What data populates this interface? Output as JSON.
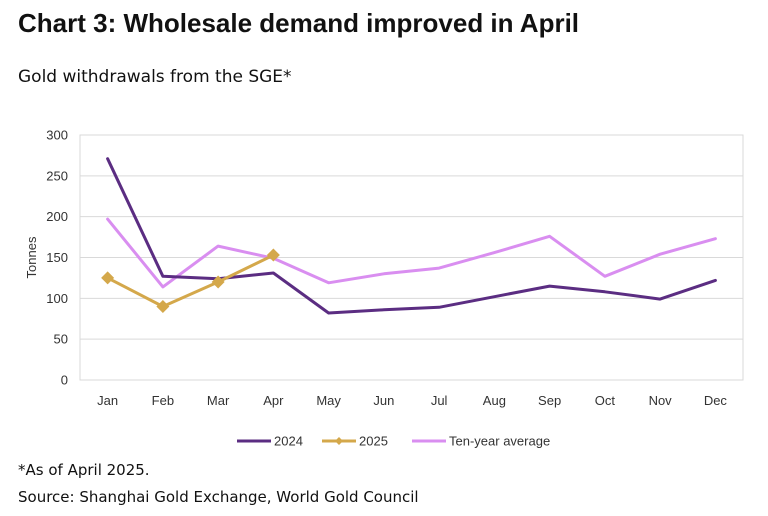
{
  "header": {
    "title": "Chart 3: Wholesale demand improved in April",
    "subtitle": "Gold withdrawals from the SGE*"
  },
  "footer": {
    "note": "*As of April 2025.",
    "source": "Source: Shanghai Gold Exchange, World Gold Council"
  },
  "chart_data": {
    "type": "line",
    "categories": [
      "Jan",
      "Feb",
      "Mar",
      "Apr",
      "May",
      "Jun",
      "Jul",
      "Aug",
      "Sep",
      "Oct",
      "Nov",
      "Dec"
    ],
    "ylabel": "Tonnes",
    "xlabel": "",
    "ylim": [
      0,
      300
    ],
    "yticks": [
      0,
      50,
      100,
      150,
      200,
      250,
      300
    ],
    "grid": true,
    "legend_position": "bottom",
    "series": [
      {
        "name": "2024",
        "color": "#5b2d82",
        "marker": "none",
        "values": [
          271,
          127,
          124,
          131,
          82,
          86,
          89,
          102,
          115,
          108,
          99,
          122
        ]
      },
      {
        "name": "2025",
        "color": "#d4a84b",
        "marker": "diamond",
        "values": [
          125,
          90,
          120,
          153,
          null,
          null,
          null,
          null,
          null,
          null,
          null,
          null
        ]
      },
      {
        "name": "Ten-year average",
        "color": "#d98ef0",
        "marker": "none",
        "values": [
          197,
          114,
          164,
          149,
          119,
          130,
          137,
          156,
          176,
          127,
          154,
          173
        ]
      }
    ]
  }
}
